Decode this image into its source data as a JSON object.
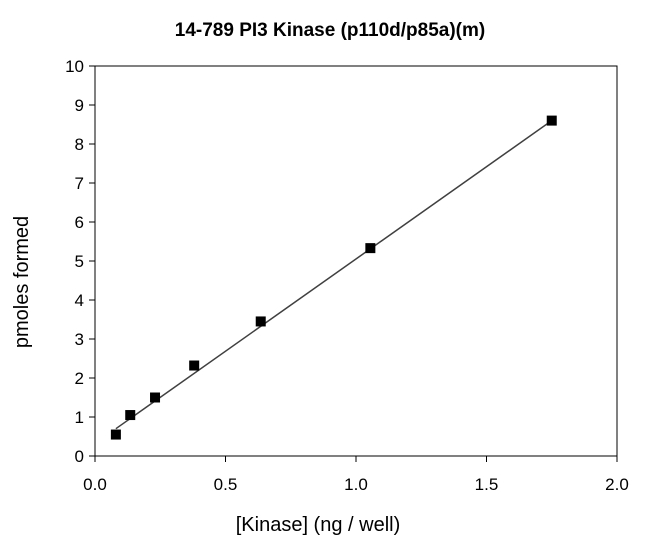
{
  "chart_data": {
    "type": "scatter",
    "title": "14-789 PI3 Kinase (p110d/p85a)(m)",
    "xlabel": "[Kinase] (ng / well)",
    "ylabel": "pmoles formed",
    "xlim": [
      0,
      2
    ],
    "ylim": [
      0,
      10
    ],
    "x_ticks": [
      "0.0",
      "0.5",
      "1.0",
      "1.5",
      "2.0"
    ],
    "y_ticks": [
      "0",
      "1",
      "2",
      "3",
      "4",
      "5",
      "6",
      "7",
      "8",
      "9",
      "10"
    ],
    "grid": false,
    "legend": "none",
    "series": [
      {
        "marker": "square",
        "color": "#000000",
        "x": [
          0.08,
          0.135,
          0.23,
          0.38,
          0.635,
          1.055,
          1.75
        ],
        "y": [
          0.55,
          1.05,
          1.5,
          2.32,
          3.45,
          5.33,
          8.6
        ]
      }
    ],
    "trendline": {
      "type": "linear",
      "color": "#404040",
      "x": [
        0.08,
        1.75
      ],
      "y": [
        0.7,
        8.6
      ]
    }
  }
}
